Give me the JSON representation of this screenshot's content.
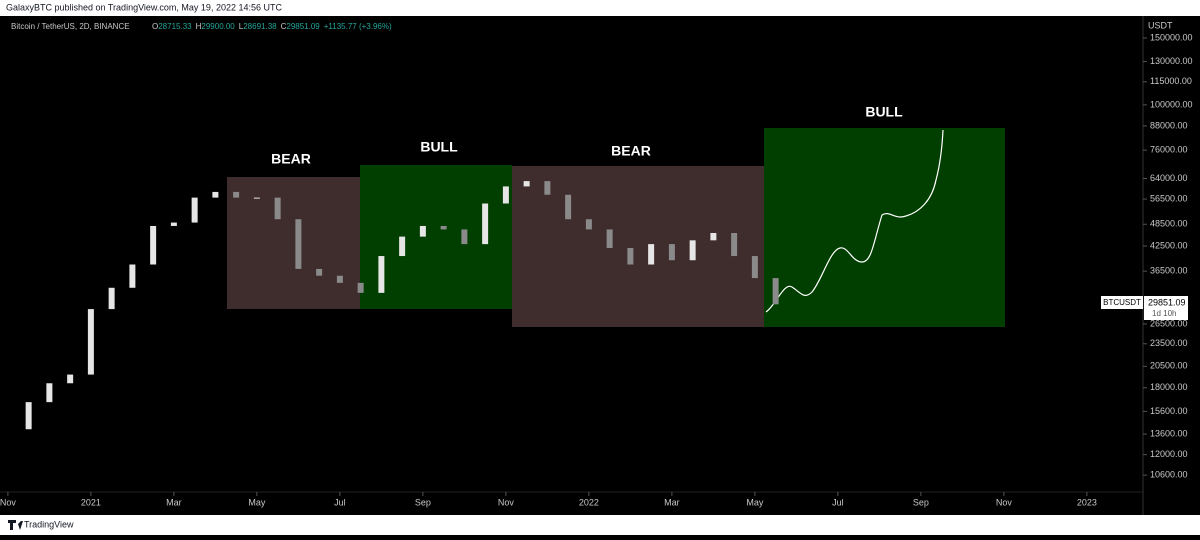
{
  "header": {
    "publisher": "GalaxyBTC published on TradingView.com, May 19, 2022 14:56 UTC"
  },
  "legend": {
    "symbol": "Bitcoin / TetherUS, 2D, BINANCE",
    "items": [
      {
        "key": "O",
        "value": "28715.33"
      },
      {
        "key": "H",
        "value": "29900.00"
      },
      {
        "key": "L",
        "value": "28691.38"
      },
      {
        "key": "C",
        "value": "29851.09"
      }
    ],
    "change": "+1135.77 (+3.96%)"
  },
  "annotations": {
    "boxes": [
      "BEAR",
      "BULL",
      "BEAR",
      "BULL"
    ]
  },
  "price_tag": {
    "symbol": "BTCUSDT",
    "price": "29851.09",
    "countdown": "1d 10h"
  },
  "axis_unit": "USDT",
  "footer": {
    "brand": "TradingView"
  },
  "chart_data": {
    "type": "candlestick",
    "log_scale": true,
    "up_color": "#e6e6e6",
    "down_color": "#8a8a8a",
    "x": [
      0,
      0.5,
      1,
      1.5,
      2,
      2.5,
      3,
      3.5,
      4,
      4.5,
      5,
      5.5,
      6,
      6.5,
      7,
      7.5,
      8,
      8.5,
      9,
      9.5,
      10,
      10.5,
      11,
      11.5,
      12,
      12.5,
      13,
      13.5,
      14,
      14.5,
      15,
      15.5,
      16,
      16.5,
      17,
      17.5,
      18,
      18.5
    ],
    "values": [
      14000,
      16500,
      18500,
      19500,
      29000,
      33000,
      38000,
      48000,
      49000,
      57000,
      59000,
      57000,
      57000,
      50000,
      37000,
      35500,
      34000,
      32000,
      40000,
      45000,
      48000,
      47000,
      43000,
      55000,
      61000,
      63000,
      58000,
      50000,
      47000,
      42000,
      38000,
      43000,
      39000,
      44000,
      46000,
      40000,
      35000,
      29851.09
    ],
    "xlim": [
      -0.19,
      27.28
    ],
    "xticks": [
      {
        "value": 0,
        "label": "Nov"
      },
      {
        "value": 2,
        "label": "2021"
      },
      {
        "value": 4,
        "label": "Mar"
      },
      {
        "value": 6,
        "label": "May"
      },
      {
        "value": 8,
        "label": "Jul"
      },
      {
        "value": 10,
        "label": "Sep"
      },
      {
        "value": 12,
        "label": "Nov"
      },
      {
        "value": 14,
        "label": "2022"
      },
      {
        "value": 16,
        "label": "Mar"
      },
      {
        "value": 18,
        "label": "May"
      },
      {
        "value": 20,
        "label": "Jul"
      },
      {
        "value": 22,
        "label": "Sep"
      },
      {
        "value": 24,
        "label": "Nov"
      },
      {
        "value": 26,
        "label": "2023"
      }
    ],
    "ylim": [
      9570,
      170350
    ],
    "yticks": [
      {
        "value": 150000,
        "label": "150000.00"
      },
      {
        "value": 130000,
        "label": "130000.00"
      },
      {
        "value": 115000,
        "label": "115000.00"
      },
      {
        "value": 100000,
        "label": "100000.00"
      },
      {
        "value": 88000,
        "label": "88000.00"
      },
      {
        "value": 76000,
        "label": "76000.00"
      },
      {
        "value": 64000,
        "label": "64000.00"
      },
      {
        "value": 56500,
        "label": "56500.00"
      },
      {
        "value": 48500,
        "label": "48500.00"
      },
      {
        "value": 42500,
        "label": "42500.00"
      },
      {
        "value": 36500,
        "label": "36500.00"
      },
      {
        "value": 26500,
        "label": "26500.00"
      },
      {
        "value": 23500,
        "label": "23500.00"
      },
      {
        "value": 20500,
        "label": "20500.00"
      },
      {
        "value": 18000,
        "label": "18000.00"
      },
      {
        "value": 15600,
        "label": "15600.00"
      },
      {
        "value": 13600,
        "label": "13600.00"
      },
      {
        "value": 12000,
        "label": "12000.00"
      },
      {
        "value": 10600,
        "label": "10600.00"
      }
    ]
  }
}
